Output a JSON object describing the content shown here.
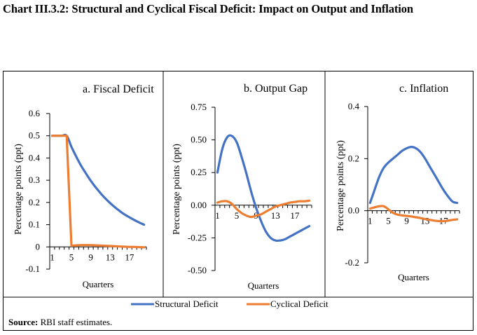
{
  "title": "Chart III.3.2: Structural and Cyclical Fiscal Deficit: Impact on Output and Inflation",
  "source_label": "Source:",
  "source_text": " RBI staff estimates.",
  "legend": [
    {
      "name": "Structural Deficit",
      "color": "#4472C4"
    },
    {
      "name": "Cyclical Deficit",
      "color": "#ED7D31"
    }
  ],
  "chart_data": [
    {
      "type": "line",
      "title": "a. Fiscal Deficit",
      "xlabel": "Quarters",
      "ylabel": "Percentage points (ppt)",
      "x": [
        1,
        2,
        3,
        4,
        5,
        6,
        7,
        8,
        9,
        10,
        11,
        12,
        13,
        14,
        15,
        16,
        17,
        18,
        19,
        20
      ],
      "xticklabels": [
        "1",
        "5",
        "9",
        "13",
        "17"
      ],
      "yticks": [
        -0.1,
        0,
        0.1,
        0.2,
        0.3,
        0.4,
        0.5,
        0.6
      ],
      "yticklabels": [
        "-0.1",
        "0",
        "0.1",
        "0.2",
        "0.3",
        "0.4",
        "0.5",
        "0.6"
      ],
      "ylim": [
        -0.1,
        0.6
      ],
      "grid": false,
      "series": [
        {
          "name": "Structural Deficit",
          "color": "#4472C4",
          "values": [
            0.5,
            0.5,
            0.5,
            0.5,
            0.45,
            0.405,
            0.365,
            0.33,
            0.297,
            0.268,
            0.242,
            0.218,
            0.197,
            0.178,
            0.161,
            0.146,
            0.133,
            0.121,
            0.11,
            0.1
          ]
        },
        {
          "name": "Cyclical Deficit",
          "color": "#ED7D31",
          "values": [
            0.5,
            0.5,
            0.5,
            0.5,
            0.005,
            0.007,
            0.008,
            0.008,
            0.008,
            0.007,
            0.006,
            0.005,
            0.004,
            0.003,
            0.002,
            0.001,
            0.0,
            0.0,
            -0.001,
            -0.002
          ]
        }
      ]
    },
    {
      "type": "line",
      "title": "b. Output Gap",
      "xlabel": "Quarters",
      "ylabel": "Percentage points (ppt)",
      "x": [
        1,
        2,
        3,
        4,
        5,
        6,
        7,
        8,
        9,
        10,
        11,
        12,
        13,
        14,
        15,
        16,
        17,
        18,
        19,
        20
      ],
      "xticklabels": [
        "1",
        "5",
        "9",
        "13",
        "17"
      ],
      "yticks": [
        -0.5,
        -0.25,
        0,
        0.25,
        0.5,
        0.75
      ],
      "yticklabels": [
        "-0.50",
        "-0.25",
        "0.00",
        "0.25",
        "0.50",
        "0.75"
      ],
      "ylim": [
        -0.5,
        0.75
      ],
      "grid": false,
      "series": [
        {
          "name": "Structural Deficit",
          "color": "#4472C4",
          "values": [
            0.25,
            0.43,
            0.52,
            0.53,
            0.48,
            0.37,
            0.24,
            0.1,
            -0.02,
            -0.12,
            -0.2,
            -0.25,
            -0.27,
            -0.27,
            -0.26,
            -0.24,
            -0.22,
            -0.2,
            -0.18,
            -0.16
          ]
        },
        {
          "name": "Cyclical Deficit",
          "color": "#ED7D31",
          "values": [
            0.02,
            0.03,
            0.03,
            0.01,
            -0.03,
            -0.06,
            -0.08,
            -0.09,
            -0.08,
            -0.07,
            -0.05,
            -0.03,
            -0.01,
            0.0,
            0.01,
            0.02,
            0.025,
            0.03,
            0.03,
            0.035
          ]
        }
      ]
    },
    {
      "type": "line",
      "title": "c. Inflation",
      "xlabel": "Quarters",
      "ylabel": "Percentage points (ppt)",
      "x": [
        1,
        2,
        3,
        4,
        5,
        6,
        7,
        8,
        9,
        10,
        11,
        12,
        13,
        14,
        15,
        16,
        17,
        18,
        19,
        20
      ],
      "xticklabels": [
        "1",
        "5",
        "9",
        "13",
        "17"
      ],
      "yticks": [
        -0.2,
        0,
        0.2,
        0.4
      ],
      "yticklabels": [
        "-0.2",
        "0.0",
        "0.2",
        "0.4"
      ],
      "ylim": [
        -0.2,
        0.4
      ],
      "grid": false,
      "series": [
        {
          "name": "Structural Deficit",
          "color": "#4472C4",
          "values": [
            0.03,
            0.08,
            0.13,
            0.165,
            0.185,
            0.2,
            0.215,
            0.23,
            0.24,
            0.245,
            0.24,
            0.225,
            0.2,
            0.17,
            0.14,
            0.11,
            0.08,
            0.055,
            0.035,
            0.03
          ]
        },
        {
          "name": "Cyclical Deficit",
          "color": "#ED7D31",
          "values": [
            0.008,
            0.013,
            0.017,
            0.017,
            0.005,
            -0.008,
            -0.015,
            -0.018,
            -0.02,
            -0.022,
            -0.025,
            -0.028,
            -0.032,
            -0.035,
            -0.038,
            -0.04,
            -0.04,
            -0.038,
            -0.035,
            -0.033
          ]
        }
      ]
    }
  ]
}
